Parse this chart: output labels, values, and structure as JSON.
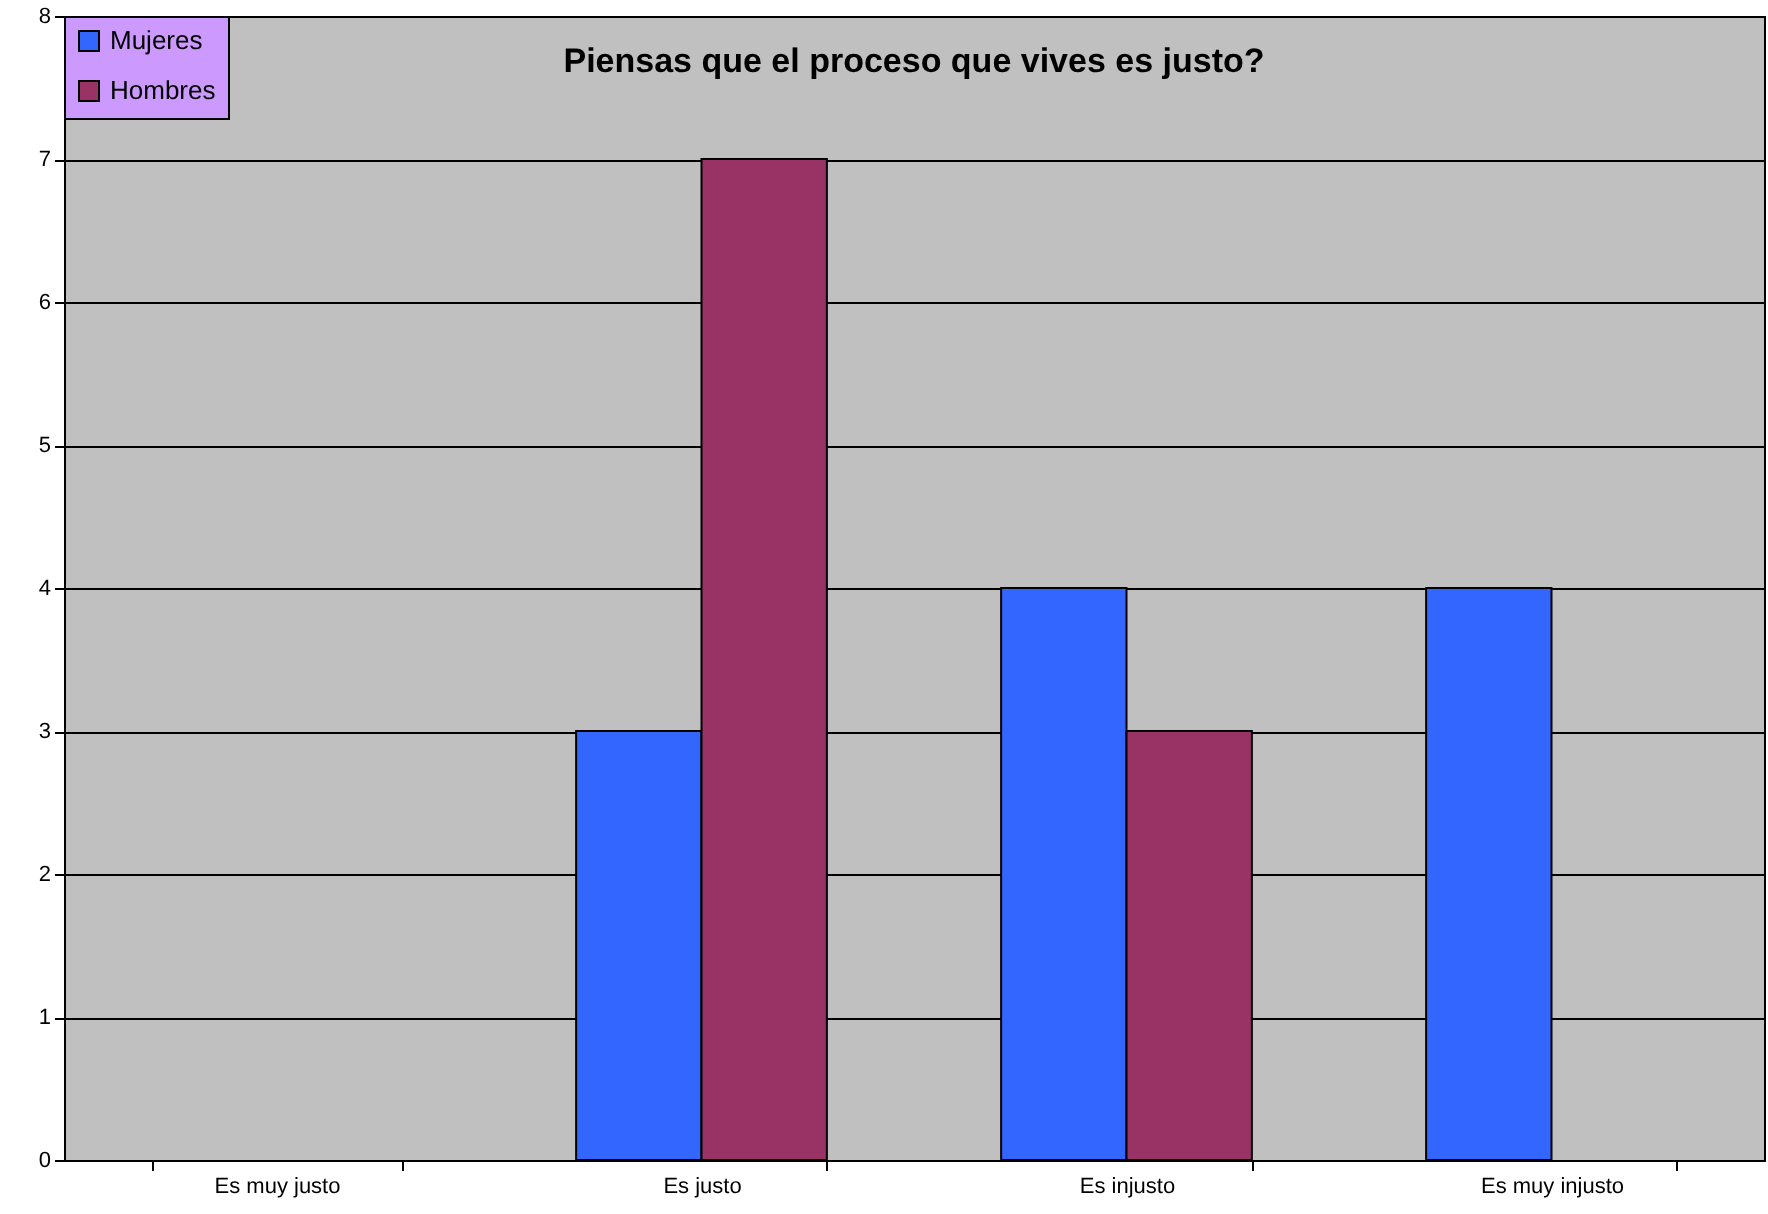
{
  "chart_data": {
    "type": "bar",
    "title": "Piensas que el proceso que vives es justo?",
    "categories": [
      "Es muy justo",
      "Es justo",
      "Es injusto",
      "Es muy injusto"
    ],
    "series": [
      {
        "name": "Mujeres",
        "color": "#3366ff",
        "values": [
          0,
          3,
          4,
          4
        ]
      },
      {
        "name": "Hombres",
        "color": "#993366",
        "values": [
          0,
          7,
          3,
          0
        ]
      }
    ],
    "ylim": [
      0,
      8
    ],
    "yticks": [
      0,
      1,
      2,
      3,
      4,
      5,
      6,
      7,
      8
    ],
    "grid": "y",
    "legend": "top left"
  }
}
